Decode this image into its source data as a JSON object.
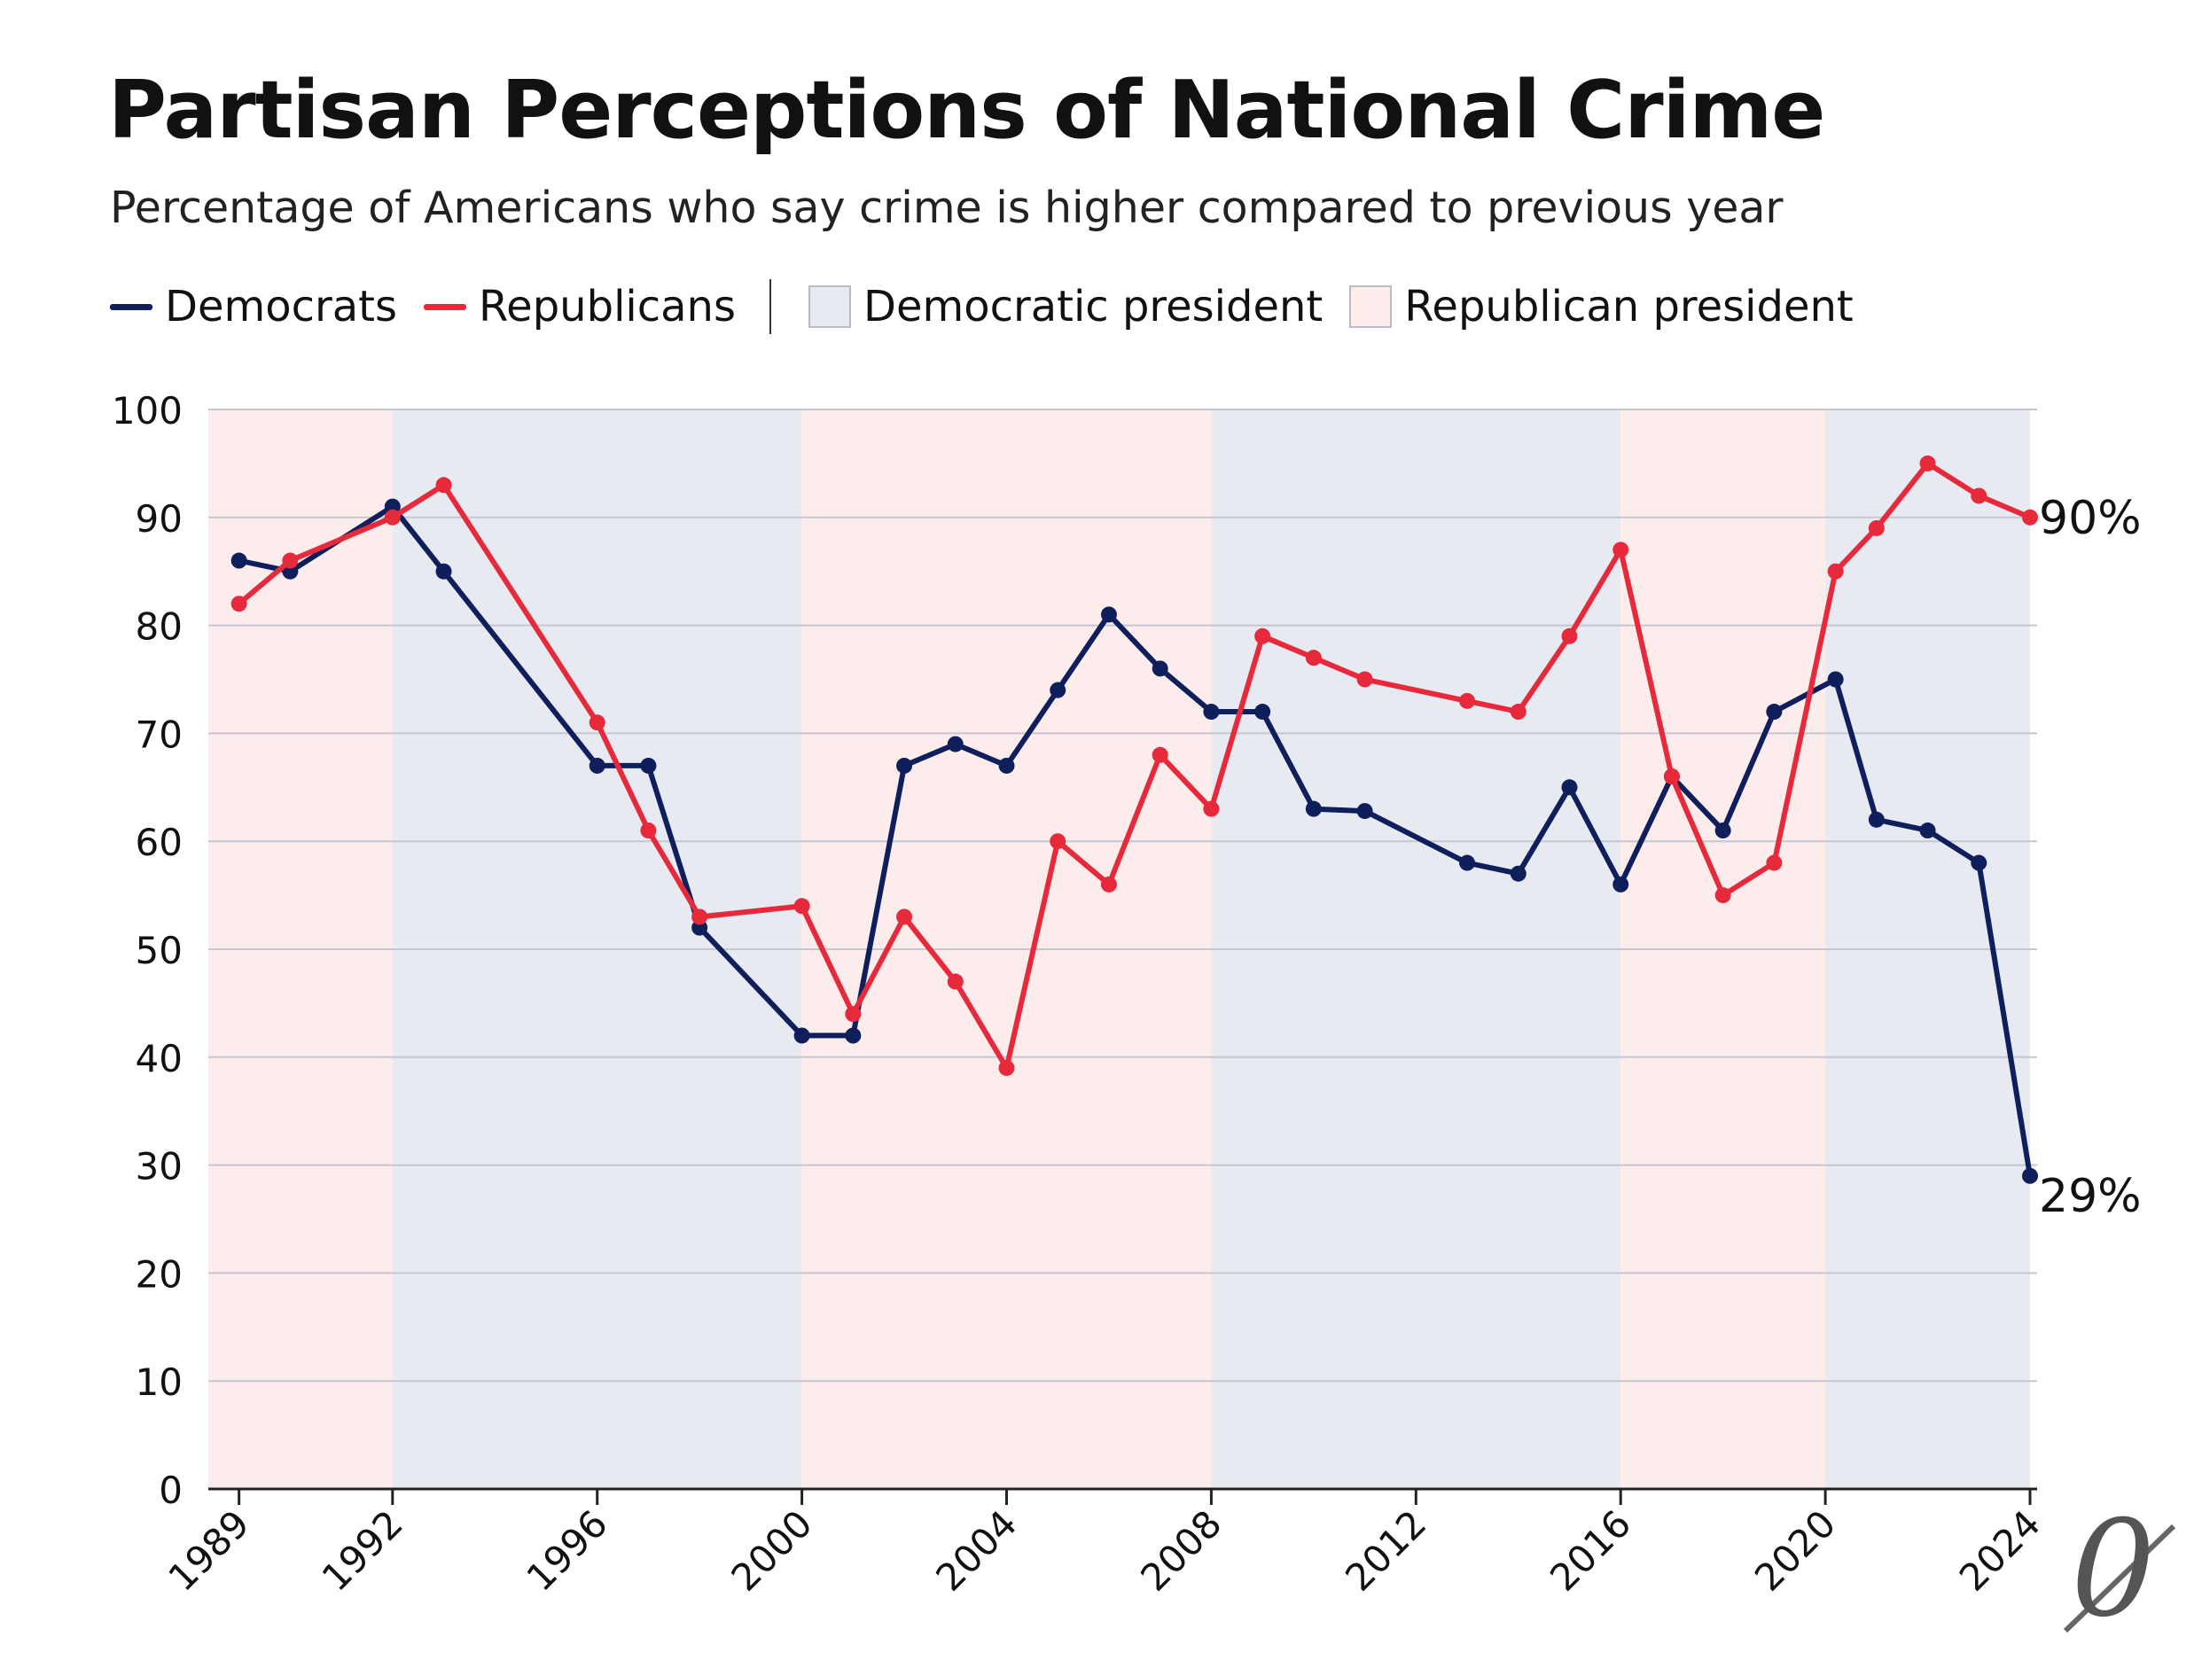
{
  "chart_data": {
    "type": "line",
    "title": "Partisan Perceptions of National Crime",
    "subtitle": "Percentage of Americans who say crime is higher compared to previous year",
    "xlabel": "",
    "ylabel": "",
    "ylim": [
      0,
      100
    ],
    "xlim": [
      1988.4,
      2024
    ],
    "y_ticks": [
      0,
      10,
      20,
      30,
      40,
      50,
      60,
      70,
      80,
      90,
      100
    ],
    "x_ticks": [
      1989,
      1992,
      1996,
      2000,
      2004,
      2008,
      2012,
      2016,
      2020,
      2024
    ],
    "legend": {
      "democrats_label": "Democrats",
      "republicans_label": "Republicans",
      "dem_president_label": "Democratic president",
      "rep_president_label": "Republican president",
      "placement": "top-left"
    },
    "series": [
      {
        "name": "Democrats",
        "color": "#0e1f5c",
        "points": [
          [
            1989,
            86
          ],
          [
            1990,
            85
          ],
          [
            1992,
            91
          ],
          [
            1993,
            85
          ],
          [
            1996,
            67
          ],
          [
            1997,
            67
          ],
          [
            1998,
            52
          ],
          [
            2000,
            42
          ],
          [
            2001,
            42
          ],
          [
            2002,
            67
          ],
          [
            2003,
            69
          ],
          [
            2004,
            67
          ],
          [
            2005,
            74
          ],
          [
            2006,
            81
          ],
          [
            2007,
            76
          ],
          [
            2008,
            72
          ],
          [
            2009,
            72
          ],
          [
            2010,
            63
          ],
          [
            2011,
            62.8
          ],
          [
            2013,
            58
          ],
          [
            2014,
            57
          ],
          [
            2015,
            65
          ],
          [
            2016,
            56
          ],
          [
            2017,
            66
          ],
          [
            2018,
            61
          ],
          [
            2019,
            72
          ],
          [
            2020.2,
            75
          ],
          [
            2021,
            62
          ],
          [
            2022,
            61
          ],
          [
            2023,
            58
          ],
          [
            2024,
            29
          ]
        ]
      },
      {
        "name": "Republicans",
        "color": "#e62a3b",
        "points": [
          [
            1989,
            82
          ],
          [
            1990,
            86
          ],
          [
            1992,
            90
          ],
          [
            1993,
            93
          ],
          [
            1996,
            71
          ],
          [
            1997,
            61
          ],
          [
            1998,
            53
          ],
          [
            2000,
            54
          ],
          [
            2001,
            44
          ],
          [
            2002,
            53
          ],
          [
            2003,
            47
          ],
          [
            2004,
            39
          ],
          [
            2005,
            60
          ],
          [
            2006,
            56
          ],
          [
            2007,
            68
          ],
          [
            2008,
            63
          ],
          [
            2009,
            79
          ],
          [
            2010,
            77
          ],
          [
            2011,
            75
          ],
          [
            2013,
            73
          ],
          [
            2014,
            72
          ],
          [
            2015,
            79
          ],
          [
            2016,
            87
          ],
          [
            2017,
            66
          ],
          [
            2018,
            55
          ],
          [
            2019,
            58
          ],
          [
            2020.2,
            85
          ],
          [
            2021,
            89
          ],
          [
            2022,
            95
          ],
          [
            2023,
            92
          ],
          [
            2024,
            90
          ]
        ]
      }
    ],
    "presidency_bands": [
      {
        "party": "R",
        "start": 1988.4,
        "end": 1992
      },
      {
        "party": "D",
        "start": 1992,
        "end": 2000
      },
      {
        "party": "R",
        "start": 2000,
        "end": 2008
      },
      {
        "party": "D",
        "start": 2008,
        "end": 2016
      },
      {
        "party": "R",
        "start": 2016,
        "end": 2020
      },
      {
        "party": "D",
        "start": 2020,
        "end": 2024
      }
    ],
    "annotations": {
      "republicans_end": "90%",
      "democrats_end": "29%"
    },
    "colors": {
      "democrats": "#0e1f5c",
      "republicans": "#e62a3b",
      "dem_band": "#e8eaf1",
      "rep_band": "#fdecec",
      "grid": "#c4c7cf"
    }
  },
  "logo_text": "0"
}
